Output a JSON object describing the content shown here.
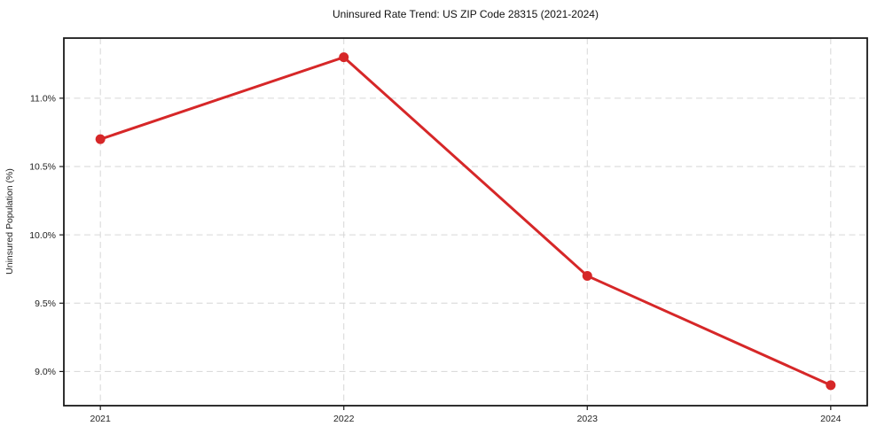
{
  "chart_data": {
    "type": "line",
    "title": "Uninsured Rate Trend: US ZIP Code 28315 (2021-2024)",
    "xlabel": "",
    "ylabel": "Uninsured Population (%)",
    "x": [
      2021,
      2022,
      2023,
      2024
    ],
    "values": [
      10.7,
      11.3,
      9.7,
      8.9
    ],
    "xticks": {
      "values": [
        2021,
        2022,
        2023,
        2024
      ],
      "labels": [
        "2021",
        "2022",
        "2023",
        "2024"
      ]
    },
    "yticks": {
      "values": [
        9.0,
        9.5,
        10.0,
        10.5,
        11.0
      ],
      "labels": [
        "9.0%",
        "9.5%",
        "10.0%",
        "10.5%",
        "11.0%"
      ]
    },
    "xlim": [
      2020.85,
      2024.15
    ],
    "ylim": [
      8.75,
      11.44
    ],
    "grid": true,
    "legend_position": "none",
    "style": {
      "line_color": "#d62728",
      "marker": "circle",
      "line_width": 3,
      "marker_radius": 5.5,
      "grid_color": "#d6d6d6",
      "spine_color": "#1a1a1a",
      "tick_color": "#1a1a1a",
      "text_color": "#1f1f1f"
    }
  }
}
